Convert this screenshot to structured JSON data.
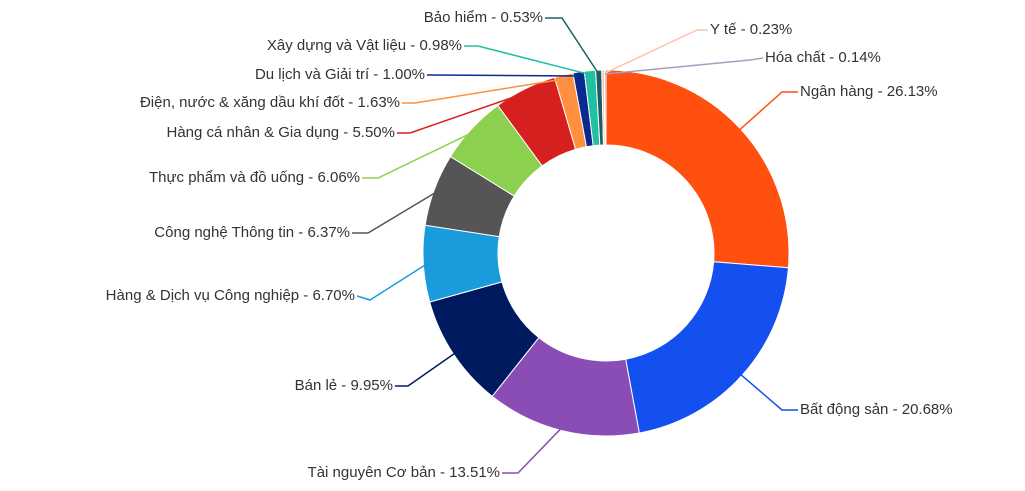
{
  "chart_data": {
    "type": "donut",
    "labels": [
      "Ngân hàng - 26.13%",
      "Bất động sản - 20.68%",
      "Tài nguyên Cơ bản - 13.51%",
      "Bán lẻ - 9.95%",
      "Hàng & Dịch vụ Công nghiệp - 6.70%",
      "Công nghệ Thông tin - 6.37%",
      "Thực phẩm và đồ uống - 6.06%",
      "Hàng cá nhân & Gia dụng - 5.50%",
      "Điện, nước & xăng dầu khí đốt - 1.63%",
      "Du lịch và Giải trí - 1.00%",
      "Xây dựng và Vật liệu - 0.98%",
      "Bảo hiểm - 0.53%",
      "Y tế - 0.23%",
      "Hóa chất - 0.14%"
    ],
    "values": [
      26.13,
      20.68,
      13.51,
      9.95,
      6.7,
      6.37,
      6.06,
      5.5,
      1.63,
      1.0,
      0.98,
      0.53,
      0.23,
      0.14
    ],
    "colors": [
      "#ff5010",
      "#1450f0",
      "#8a4db5",
      "#001a60",
      "#1a9bdb",
      "#555555",
      "#8cd050",
      "#d62020",
      "#ff9040",
      "#0a2a90",
      "#20c0a0",
      "#1a6060",
      "#ffc0b0",
      "#a0a0c0"
    ]
  }
}
